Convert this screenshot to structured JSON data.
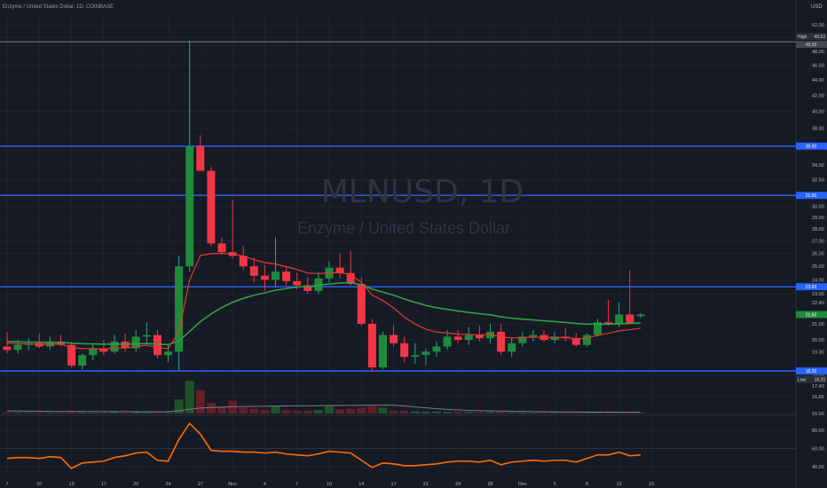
{
  "header": {
    "symbol_line": "Enzyme / United States Dollar, 1D, COINBASE",
    "currency": "USD"
  },
  "watermark": {
    "ticker": "MLNUSD, 1D",
    "name": "Enzyme / United States Dollar"
  },
  "price_axis": {
    "ticks": [
      "52.00",
      "50.00",
      "48.00",
      "46.00",
      "44.00",
      "42.00",
      "40.00",
      "38.00",
      "36.00",
      "34.00",
      "32.50",
      "31.00",
      "30.00",
      "29.00",
      "28.00",
      "27.00",
      "26.00",
      "25.00",
      "24.00",
      "23.00",
      "22.40",
      "21.00",
      "20.00",
      "19.30",
      "18.00",
      "17.40",
      "16.85",
      "16.00"
    ],
    "tick_values": [
      52,
      50,
      48,
      46,
      44,
      42,
      40,
      38,
      36,
      34,
      32.5,
      31,
      30,
      29,
      28,
      27,
      26,
      25,
      24,
      23,
      22.4,
      21,
      20,
      19.3,
      18,
      17.4,
      16.85,
      16
    ],
    "badges": {
      "high_label": "High",
      "high_value": "49.63",
      "near_high_value": "49.39",
      "level_36": "36.00",
      "level_31": "31.00",
      "level_23": "23.50",
      "last_price": "21.60",
      "low_value": "18.20",
      "low_label": "Low"
    }
  },
  "osc_axis": {
    "ticks": [
      "80.00",
      "60.00",
      "40.00"
    ],
    "tick_values": [
      80,
      60,
      40
    ]
  },
  "time_axis": {
    "labels": [
      "7",
      "10",
      "13",
      "17",
      "20",
      "24",
      "27",
      "Nov",
      "4",
      "7",
      "10",
      "14",
      "17",
      "21",
      "24",
      "28",
      "Dec",
      "5",
      "8",
      "12",
      "15"
    ],
    "label_positions": [
      7,
      10,
      13,
      16,
      19,
      22,
      25,
      28,
      31,
      34,
      37,
      40,
      43,
      46,
      49,
      52,
      55,
      58,
      61,
      64,
      67
    ]
  },
  "colors": {
    "bg": "#161a25",
    "up": "#26a69a",
    "up_candle": "#1f8b3a",
    "down": "#f23645",
    "ema_fast": "#e53935",
    "ema_slow": "#2ea043",
    "level": "#2962ff",
    "osc": "#ff6d00",
    "grid": "#222733"
  },
  "chart_data": {
    "type": "candlestick",
    "title": "Enzyme / United States Dollar, 1D, COINBASE",
    "ylim": [
      16,
      54
    ],
    "price_scale": "log",
    "candles": [
      {
        "o": 19.6,
        "h": 20.5,
        "l": 19.2,
        "c": 19.4
      },
      {
        "o": 19.4,
        "h": 20.0,
        "l": 19.2,
        "c": 19.7
      },
      {
        "o": 19.7,
        "h": 20.1,
        "l": 19.4,
        "c": 19.8
      },
      {
        "o": 19.8,
        "h": 20.4,
        "l": 19.5,
        "c": 19.6
      },
      {
        "o": 19.6,
        "h": 20.2,
        "l": 19.4,
        "c": 19.9
      },
      {
        "o": 19.9,
        "h": 20.3,
        "l": 19.6,
        "c": 19.7
      },
      {
        "o": 19.7,
        "h": 19.9,
        "l": 18.4,
        "c": 18.5
      },
      {
        "o": 18.5,
        "h": 19.2,
        "l": 18.3,
        "c": 19.1
      },
      {
        "o": 19.1,
        "h": 19.8,
        "l": 18.8,
        "c": 19.5
      },
      {
        "o": 19.5,
        "h": 20.0,
        "l": 19.1,
        "c": 19.3
      },
      {
        "o": 19.3,
        "h": 20.3,
        "l": 19.2,
        "c": 19.9
      },
      {
        "o": 19.9,
        "h": 20.4,
        "l": 19.3,
        "c": 19.5
      },
      {
        "o": 19.5,
        "h": 20.6,
        "l": 19.3,
        "c": 20.2
      },
      {
        "o": 20.2,
        "h": 21.1,
        "l": 19.8,
        "c": 20.3
      },
      {
        "o": 20.3,
        "h": 20.6,
        "l": 18.9,
        "c": 19.1
      },
      {
        "o": 19.1,
        "h": 19.7,
        "l": 18.7,
        "c": 19.3
      },
      {
        "o": 19.3,
        "h": 25.8,
        "l": 18.2,
        "c": 25.0
      },
      {
        "o": 25.0,
        "h": 49.6,
        "l": 24.6,
        "c": 36.0
      },
      {
        "o": 36.0,
        "h": 37.2,
        "l": 33.4,
        "c": 33.4
      },
      {
        "o": 33.4,
        "h": 33.8,
        "l": 26.6,
        "c": 26.8
      },
      {
        "o": 26.8,
        "h": 27.3,
        "l": 25.9,
        "c": 26.1
      },
      {
        "o": 26.1,
        "h": 30.6,
        "l": 25.6,
        "c": 25.8
      },
      {
        "o": 25.8,
        "h": 26.6,
        "l": 24.7,
        "c": 25.0
      },
      {
        "o": 25.0,
        "h": 25.7,
        "l": 23.8,
        "c": 24.3
      },
      {
        "o": 24.3,
        "h": 25.1,
        "l": 23.2,
        "c": 24.0
      },
      {
        "o": 24.0,
        "h": 27.3,
        "l": 23.5,
        "c": 24.6
      },
      {
        "o": 24.6,
        "h": 25.0,
        "l": 23.6,
        "c": 23.9
      },
      {
        "o": 23.9,
        "h": 24.5,
        "l": 23.3,
        "c": 23.6
      },
      {
        "o": 23.6,
        "h": 24.2,
        "l": 23.0,
        "c": 23.2
      },
      {
        "o": 23.2,
        "h": 24.6,
        "l": 23.0,
        "c": 24.1
      },
      {
        "o": 24.1,
        "h": 25.4,
        "l": 23.8,
        "c": 24.9
      },
      {
        "o": 24.9,
        "h": 26.0,
        "l": 24.1,
        "c": 24.5
      },
      {
        "o": 24.5,
        "h": 26.2,
        "l": 23.6,
        "c": 23.7
      },
      {
        "o": 23.7,
        "h": 24.2,
        "l": 20.9,
        "c": 21.0
      },
      {
        "o": 21.0,
        "h": 21.3,
        "l": 18.2,
        "c": 18.4
      },
      {
        "o": 18.4,
        "h": 20.5,
        "l": 18.3,
        "c": 20.3
      },
      {
        "o": 20.3,
        "h": 20.9,
        "l": 19.6,
        "c": 19.8
      },
      {
        "o": 19.8,
        "h": 20.2,
        "l": 18.7,
        "c": 19.0
      },
      {
        "o": 19.0,
        "h": 19.8,
        "l": 18.6,
        "c": 19.1
      },
      {
        "o": 19.1,
        "h": 19.5,
        "l": 18.5,
        "c": 19.3
      },
      {
        "o": 19.3,
        "h": 19.9,
        "l": 19.0,
        "c": 19.6
      },
      {
        "o": 19.6,
        "h": 20.6,
        "l": 19.4,
        "c": 20.2
      },
      {
        "o": 20.2,
        "h": 20.6,
        "l": 19.8,
        "c": 20.0
      },
      {
        "o": 20.0,
        "h": 20.8,
        "l": 19.7,
        "c": 20.3
      },
      {
        "o": 20.3,
        "h": 20.9,
        "l": 19.9,
        "c": 20.1
      },
      {
        "o": 20.1,
        "h": 21.0,
        "l": 19.8,
        "c": 20.5
      },
      {
        "o": 20.5,
        "h": 21.0,
        "l": 19.1,
        "c": 19.3
      },
      {
        "o": 19.3,
        "h": 20.1,
        "l": 19.0,
        "c": 19.8
      },
      {
        "o": 19.8,
        "h": 20.5,
        "l": 19.6,
        "c": 20.2
      },
      {
        "o": 20.2,
        "h": 20.6,
        "l": 19.9,
        "c": 20.3
      },
      {
        "o": 20.3,
        "h": 20.6,
        "l": 19.9,
        "c": 20.0
      },
      {
        "o": 20.0,
        "h": 20.5,
        "l": 19.8,
        "c": 20.2
      },
      {
        "o": 20.2,
        "h": 20.7,
        "l": 19.9,
        "c": 20.1
      },
      {
        "o": 20.1,
        "h": 20.4,
        "l": 19.6,
        "c": 19.7
      },
      {
        "o": 19.7,
        "h": 20.4,
        "l": 19.6,
        "c": 20.3
      },
      {
        "o": 20.3,
        "h": 21.3,
        "l": 20.2,
        "c": 21.1
      },
      {
        "o": 21.1,
        "h": 22.6,
        "l": 20.9,
        "c": 21.0
      },
      {
        "o": 21.0,
        "h": 22.4,
        "l": 20.8,
        "c": 21.6
      },
      {
        "o": 21.6,
        "h": 24.7,
        "l": 21.2,
        "c": 21.0
      },
      {
        "o": 21.5,
        "h": 21.7,
        "l": 21.4,
        "c": 21.6
      }
    ],
    "ema_fast": [
      19.8,
      19.76,
      19.76,
      19.73,
      19.75,
      19.74,
      19.55,
      19.48,
      19.48,
      19.45,
      19.52,
      19.51,
      19.6,
      19.68,
      19.53,
      19.49,
      20.49,
      23.99,
      25.84,
      25.98,
      26.0,
      25.96,
      25.8,
      25.52,
      25.28,
      25.18,
      24.97,
      24.76,
      24.5,
      24.45,
      24.52,
      24.52,
      24.39,
      23.81,
      22.91,
      22.53,
      22.04,
      21.43,
      20.99,
      20.66,
      20.48,
      20.42,
      20.35,
      20.34,
      20.3,
      20.34,
      20.18,
      20.12,
      20.14,
      20.17,
      20.14,
      20.15,
      20.14,
      20.07,
      20.11,
      20.28,
      20.4,
      20.56,
      20.63,
      20.72
    ],
    "ema_slow": [
      19.9,
      19.88,
      19.87,
      19.86,
      19.86,
      19.85,
      19.8,
      19.77,
      19.76,
      19.74,
      19.75,
      19.74,
      19.76,
      19.78,
      19.74,
      19.72,
      19.93,
      20.52,
      21.14,
      21.64,
      22.07,
      22.42,
      22.69,
      22.9,
      23.07,
      23.25,
      23.37,
      23.47,
      23.53,
      23.6,
      23.7,
      23.77,
      23.79,
      23.64,
      23.33,
      23.12,
      22.9,
      22.64,
      22.41,
      22.21,
      22.05,
      21.94,
      21.83,
      21.74,
      21.65,
      21.58,
      21.45,
      21.36,
      21.3,
      21.25,
      21.19,
      21.14,
      21.09,
      21.02,
      20.98,
      20.98,
      20.98,
      21.0,
      21.02,
      21.05
    ],
    "volume": [
      1.2,
      0.8,
      0.9,
      0.8,
      0.7,
      0.8,
      1.5,
      1.0,
      0.9,
      0.8,
      1.0,
      0.9,
      1.1,
      1.0,
      1.3,
      1.0,
      12.0,
      28.0,
      20.0,
      9.0,
      6.0,
      11.0,
      5.0,
      4.0,
      3.0,
      6.0,
      3.0,
      2.5,
      2.2,
      3.0,
      7.0,
      3.5,
      4.0,
      5.0,
      6.5,
      5.0,
      2.5,
      2.2,
      2.0,
      1.6,
      1.8,
      1.5,
      1.4,
      1.3,
      1.2,
      1.2,
      1.6,
      1.0,
      1.0,
      0.9,
      0.8,
      0.9,
      0.8,
      0.9,
      0.9,
      1.0,
      1.1,
      0.9,
      1.2,
      0.7
    ],
    "volume_avg": [
      2.2,
      2.1,
      2.0,
      1.9,
      1.8,
      1.8,
      1.8,
      1.7,
      1.7,
      1.6,
      1.6,
      1.6,
      1.5,
      1.5,
      1.5,
      1.5,
      2.3,
      3.6,
      4.6,
      5.1,
      5.4,
      5.8,
      6.0,
      6.1,
      6.2,
      6.3,
      6.4,
      6.5,
      6.5,
      6.6,
      6.7,
      6.8,
      6.9,
      7.0,
      7.1,
      7.1,
      7.0,
      6.4,
      5.6,
      4.8,
      4.1,
      3.5,
      3.0,
      2.6,
      2.4,
      2.2,
      2.1,
      1.9,
      1.8,
      1.6,
      1.5,
      1.4,
      1.3,
      1.2,
      1.2,
      1.1,
      1.1,
      1.0,
      1.0,
      1.0
    ],
    "oscillator": {
      "ylim": [
        30,
        95
      ],
      "values": [
        49,
        50,
        50,
        49,
        51,
        50,
        38,
        44,
        45,
        46,
        50,
        52,
        55,
        56,
        47,
        46,
        70,
        88,
        76,
        58,
        57,
        57,
        56,
        56,
        55,
        56,
        54,
        53,
        52,
        54,
        57,
        56,
        55,
        47,
        39,
        44,
        43,
        41,
        41,
        42,
        43,
        45,
        46,
        46,
        45,
        47,
        42,
        45,
        46,
        47,
        46,
        47,
        47,
        45,
        49,
        53,
        53,
        56,
        52,
        53
      ]
    },
    "levels": [
      49.39,
      36.0,
      31.0,
      23.5,
      18.2
    ]
  }
}
